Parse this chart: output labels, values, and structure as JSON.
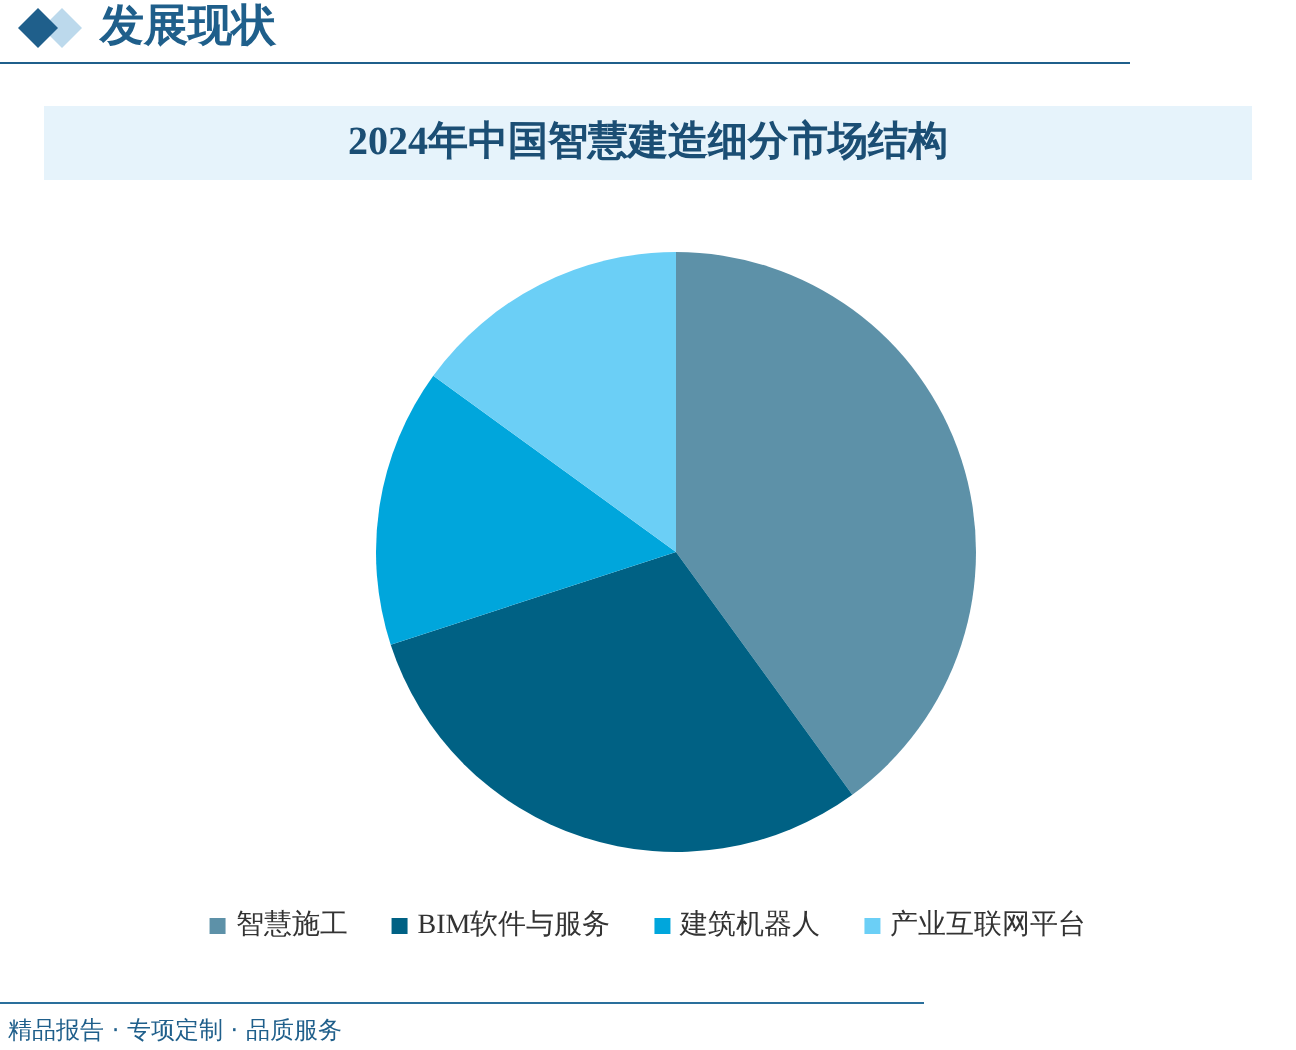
{
  "chart_data": {
    "type": "pie",
    "title": "2024年中国智慧建造细分市场结构",
    "categories": [
      "智慧施工",
      "BIM软件与服务",
      "建筑机器人",
      "产业互联网平台"
    ],
    "values": [
      40,
      30,
      15,
      15
    ],
    "colors": [
      "#5d91a8",
      "#006184",
      "#00a6dc",
      "#6bcff6"
    ],
    "legend": "bottom",
    "annotations": [
      "发展现状",
      "精品报告 · 专项定制 · 品质服务"
    ]
  }
}
